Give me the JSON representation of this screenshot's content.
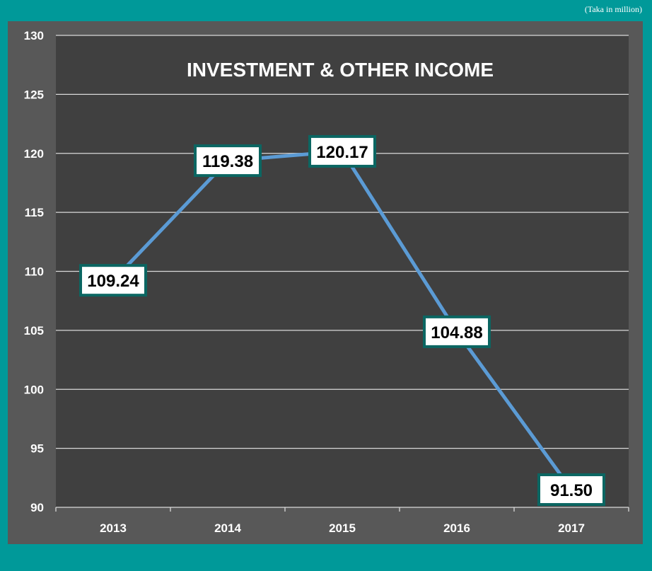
{
  "unit_note": "(Taka in million)",
  "chart_data": {
    "type": "line",
    "title": "INVESTMENT & OTHER INCOME",
    "xlabel": "",
    "ylabel": "",
    "categories": [
      "2013",
      "2014",
      "2015",
      "2016",
      "2017"
    ],
    "values": [
      109.24,
      119.38,
      120.17,
      104.88,
      91.5
    ],
    "data_labels": [
      "109.24",
      "119.38",
      "120.17",
      "104.88",
      "91.50"
    ],
    "ylim": [
      90,
      130
    ],
    "yticks": [
      90,
      95,
      100,
      105,
      110,
      115,
      120,
      125,
      130
    ],
    "grid": true,
    "legend": "none"
  },
  "colors": {
    "page_background": "#009999",
    "outer_panel": "#585858",
    "plot_area": "#404040",
    "line": "#5b9bd5",
    "label_border": "#0b6662",
    "label_fill": "#ffffff",
    "text": "#ffffff",
    "gridline": "#d9d9d9"
  }
}
